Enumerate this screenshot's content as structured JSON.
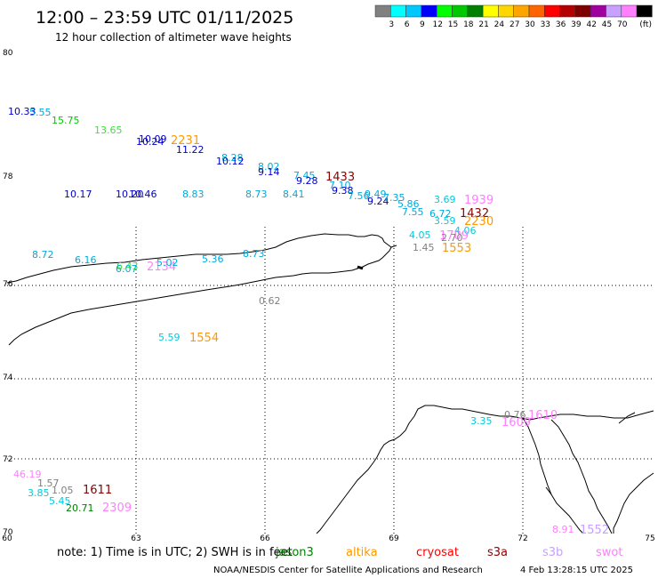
{
  "header": {
    "title": "12:00 – 23:59 UTC 01/11/2025",
    "subtitle": "12 hour collection of altimeter wave heights"
  },
  "colorbar": {
    "unit": "(ft)",
    "bins": [
      {
        "color": "#808080",
        "label": ""
      },
      {
        "color": "#00ffff",
        "label": "3"
      },
      {
        "color": "#00c8ff",
        "label": "6"
      },
      {
        "color": "#0000ff",
        "label": "9"
      },
      {
        "color": "#00ff00",
        "label": "12"
      },
      {
        "color": "#00c800",
        "label": "15"
      },
      {
        "color": "#008000",
        "label": "18"
      },
      {
        "color": "#ffff00",
        "label": "21"
      },
      {
        "color": "#ffd700",
        "label": "24"
      },
      {
        "color": "#ffa500",
        "label": "27"
      },
      {
        "color": "#ff6400",
        "label": "30"
      },
      {
        "color": "#ff0000",
        "label": "33"
      },
      {
        "color": "#b40000",
        "label": "36"
      },
      {
        "color": "#7f0000",
        "label": "39"
      },
      {
        "color": "#a000a0",
        "label": "42"
      },
      {
        "color": "#c8a0ff",
        "label": "45"
      },
      {
        "color": "#ff80ff",
        "label": "70"
      },
      {
        "color": "#000000",
        "label": ""
      }
    ]
  },
  "axes": {
    "lat_labels": [
      "80",
      "78",
      "76",
      "74",
      "72",
      "70"
    ],
    "lon_labels": [
      "60",
      "63",
      "66",
      "69",
      "72",
      "75"
    ]
  },
  "wave_labels": [
    {
      "text": "10.33",
      "color": "#0000c8"
    },
    {
      "text": "5.55",
      "color": "#00aadd"
    },
    {
      "text": "15.75",
      "color": "#00c800"
    },
    {
      "text": "13.65",
      "color": "#44dd44"
    },
    {
      "text": "10.09",
      "color": "#0000c8"
    },
    {
      "text": "10.24",
      "color": "#0000c8"
    },
    {
      "text": "2231",
      "color": "#ff9900"
    },
    {
      "text": "11.22",
      "color": "#0000c8"
    },
    {
      "text": "8.28",
      "color": "#00aadd"
    },
    {
      "text": "10.12",
      "color": "#0000c8"
    },
    {
      "text": "8.02",
      "color": "#00aadd"
    },
    {
      "text": "9.14",
      "color": "#0000c8"
    },
    {
      "text": "7.45",
      "color": "#00aadd"
    },
    {
      "text": "9.28",
      "color": "#0000c8"
    },
    {
      "text": "1433",
      "color": "#8b0000"
    },
    {
      "text": "7.10",
      "color": "#00aadd"
    },
    {
      "text": "9.38",
      "color": "#0000c8"
    },
    {
      "text": "7.56",
      "color": "#00aadd"
    },
    {
      "text": "9.49",
      "color": "#00aadd"
    },
    {
      "text": "9.24",
      "color": "#0000c8"
    },
    {
      "text": "7.35",
      "color": "#00aadd"
    },
    {
      "text": "5.86",
      "color": "#00aadd"
    },
    {
      "text": "7.55",
      "color": "#00aadd"
    },
    {
      "text": "3.69",
      "color": "#00ccdd"
    },
    {
      "text": "1939",
      "color": "#ff80ff"
    },
    {
      "text": "6.72",
      "color": "#00aadd"
    },
    {
      "text": "1432",
      "color": "#8b0000"
    },
    {
      "text": "3.59",
      "color": "#00ccdd"
    },
    {
      "text": "2230",
      "color": "#ff9900"
    },
    {
      "text": "10.17",
      "color": "#0000c8"
    },
    {
      "text": "10.20",
      "color": "#0000c8"
    },
    {
      "text": "10.46",
      "color": "#0000c8"
    },
    {
      "text": "8.83",
      "color": "#00aadd"
    },
    {
      "text": "8.73",
      "color": "#00aadd"
    },
    {
      "text": "8.41",
      "color": "#00aadd"
    },
    {
      "text": "4.06",
      "color": "#00ccdd"
    },
    {
      "text": "4.05",
      "color": "#00ccdd"
    },
    {
      "text": "1709",
      "color": "#ff80ff"
    },
    {
      "text": "2.70",
      "color": "#808080"
    },
    {
      "text": "1.45",
      "color": "#808080"
    },
    {
      "text": "1553",
      "color": "#ff9900"
    },
    {
      "text": "8.72",
      "color": "#00aadd"
    },
    {
      "text": "6.16",
      "color": "#00aadd"
    },
    {
      "text": "6.43",
      "color": "#44dd44"
    },
    {
      "text": "6.07",
      "color": "#00aadd"
    },
    {
      "text": "2134",
      "color": "#ff80ff"
    },
    {
      "text": "5.02",
      "color": "#00aadd"
    },
    {
      "text": "5.36",
      "color": "#00aadd"
    },
    {
      "text": "8.73",
      "color": "#00aadd"
    },
    {
      "text": "0.62",
      "color": "#808080"
    },
    {
      "text": "5.59",
      "color": "#00ccdd"
    },
    {
      "text": "1554",
      "color": "#ff9900"
    },
    {
      "text": "0.76",
      "color": "#808080"
    },
    {
      "text": "1610",
      "color": "#ff80ff"
    },
    {
      "text": "3.35",
      "color": "#00ccdd"
    },
    {
      "text": "1609",
      "color": "#ff80ff"
    },
    {
      "text": "46.19",
      "color": "#ff80ff"
    },
    {
      "text": "1.57",
      "color": "#808080"
    },
    {
      "text": "3.85",
      "color": "#00ccdd"
    },
    {
      "text": "1.05",
      "color": "#808080"
    },
    {
      "text": "1611",
      "color": "#8b0000"
    },
    {
      "text": "5.45",
      "color": "#00ccdd"
    },
    {
      "text": "20.71",
      "color": "#008000"
    },
    {
      "text": "2309",
      "color": "#ff80ff"
    },
    {
      "text": "8.91",
      "color": "#ff80ff"
    },
    {
      "text": "1552",
      "color": "#c8a0ff"
    }
  ],
  "footer": {
    "note": "note:  1) Time is in UTC;  2) SWH is in feet",
    "satellites": [
      {
        "name": "jason3",
        "color": "#008000"
      },
      {
        "name": "altika",
        "color": "#ff9900"
      },
      {
        "name": "cryosat",
        "color": "#ff0000"
      },
      {
        "name": "s3a",
        "color": "#8b0000"
      },
      {
        "name": "s3b",
        "color": "#c8a0ff"
      },
      {
        "name": "swot",
        "color": "#ff80ff"
      }
    ],
    "credit": "NOAA/NESDIS Center for Satellite Applications and Research",
    "timestamp": "4 Feb 13:28:15 UTC 2025"
  }
}
